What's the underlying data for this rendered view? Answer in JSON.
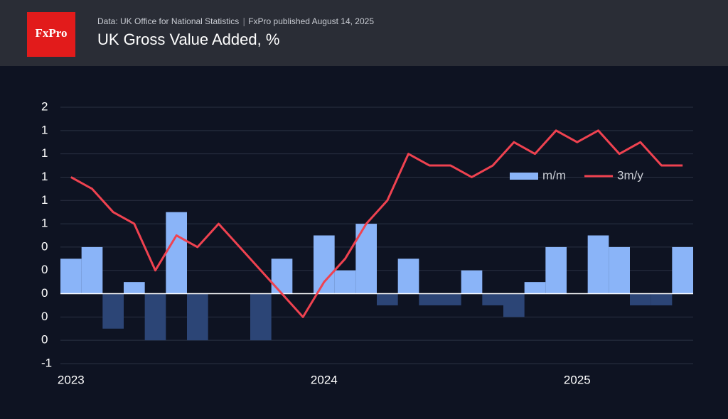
{
  "chart_data": {
    "type": "bar_line",
    "brand": "FxPro",
    "source": "Data: UK Office for National Statistics",
    "published": "FxPro published August 14, 2025",
    "title": "UK Gross Value Added, %",
    "categories": [
      "2023",
      null,
      null,
      null,
      null,
      null,
      null,
      null,
      null,
      null,
      null,
      null,
      "2024",
      null,
      null,
      null,
      null,
      null,
      null,
      null,
      null,
      null,
      null,
      null,
      "2025",
      null,
      null,
      null,
      null,
      null
    ],
    "series": [
      {
        "name": "m/m",
        "type": "bar",
        "color": "#8ab4f8",
        "negative_color": "#2c4576",
        "values": [
          0.3,
          0.4,
          -0.3,
          0.1,
          -0.4,
          0.7,
          -0.4,
          0,
          0,
          -0.4,
          0.3,
          0,
          0.5,
          0.2,
          0.6,
          -0.1,
          0.3,
          -0.1,
          -0.1,
          0.2,
          -0.1,
          -0.2,
          0.1,
          0.4,
          0,
          0.5,
          0.4,
          -0.1,
          -0.1,
          0.4
        ]
      },
      {
        "name": "3m/y",
        "type": "line",
        "color": "#ef4250",
        "values": [
          1.0,
          0.9,
          0.7,
          0.6,
          0.2,
          0.5,
          0.4,
          0.6,
          0.4,
          0.2,
          0.0,
          -0.2,
          0.1,
          0.3,
          0.6,
          0.8,
          1.2,
          1.1,
          1.1,
          1.0,
          1.1,
          1.3,
          1.2,
          1.4,
          1.3,
          1.4,
          1.2,
          1.3,
          1.1,
          1.1
        ]
      }
    ],
    "ylim": [
      -0.6,
      1.6
    ],
    "yticks": [
      {
        "value": -0.6,
        "label": "-1"
      },
      {
        "value": -0.4,
        "label": "0"
      },
      {
        "value": -0.2,
        "label": "0"
      },
      0,
      {
        "value": 0.2,
        "label": "0"
      },
      {
        "value": 0.4,
        "label": "0"
      },
      {
        "value": 0.6,
        "label": "1"
      },
      {
        "value": 0.8,
        "label": "1"
      },
      {
        "value": 1.0,
        "label": "1"
      },
      {
        "value": 1.2,
        "label": "1"
      },
      {
        "value": 1.4,
        "label": "1"
      },
      {
        "value": 1.6,
        "label": "2"
      }
    ],
    "grid": true
  }
}
